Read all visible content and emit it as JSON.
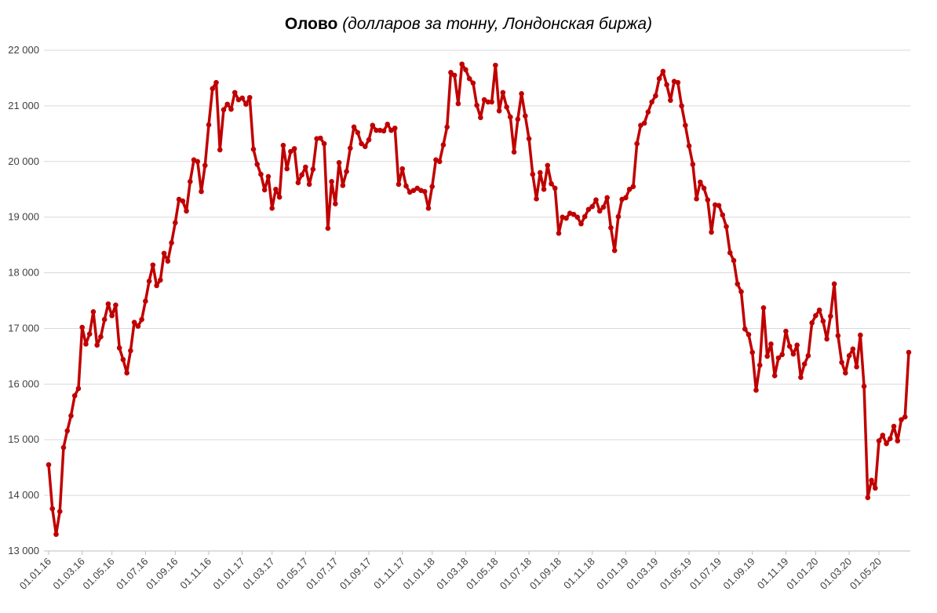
{
  "chart_data": {
    "type": "line",
    "title": "Олово",
    "subtitle": "(долларов за тонну, Лондонская биржа)",
    "categories": [
      "01.01.16",
      null,
      null,
      null,
      null,
      null,
      null,
      null,
      null,
      "01.03.16",
      null,
      null,
      null,
      null,
      null,
      null,
      null,
      "01.05.16",
      null,
      null,
      null,
      null,
      null,
      null,
      null,
      null,
      "01.07.16",
      null,
      null,
      null,
      null,
      null,
      null,
      null,
      "01.09.16",
      null,
      null,
      null,
      null,
      null,
      null,
      null,
      null,
      "01.11.16",
      null,
      null,
      null,
      null,
      null,
      null,
      null,
      null,
      "01.01.17",
      null,
      null,
      null,
      null,
      null,
      null,
      null,
      "01.03.17",
      null,
      null,
      null,
      null,
      null,
      null,
      null,
      null,
      "01.05.17",
      null,
      null,
      null,
      null,
      null,
      null,
      null,
      "01.07.17",
      null,
      null,
      null,
      null,
      null,
      null,
      null,
      null,
      "01.09.17",
      null,
      null,
      null,
      null,
      null,
      null,
      null,
      null,
      "01.11.17",
      null,
      null,
      null,
      null,
      null,
      null,
      null,
      "01.01.18",
      null,
      null,
      null,
      null,
      null,
      null,
      null,
      null,
      "01.03.18",
      null,
      null,
      null,
      null,
      null,
      null,
      null,
      "01.05.18",
      null,
      null,
      null,
      null,
      null,
      null,
      null,
      null,
      "01.07.18",
      null,
      null,
      null,
      null,
      null,
      null,
      null,
      "01.09.18",
      null,
      null,
      null,
      null,
      null,
      null,
      null,
      null,
      "01.11.18",
      null,
      null,
      null,
      null,
      null,
      null,
      null,
      null,
      "01.01.19",
      null,
      null,
      null,
      null,
      null,
      null,
      null,
      "01.03.19",
      null,
      null,
      null,
      null,
      null,
      null,
      null,
      null,
      "01.05.19",
      null,
      null,
      null,
      null,
      null,
      null,
      null,
      "01.07.19",
      null,
      null,
      null,
      null,
      null,
      null,
      null,
      null,
      "01.09.19",
      null,
      null,
      null,
      null,
      null,
      null,
      null,
      null,
      "01.11.19",
      null,
      null,
      null,
      null,
      null,
      null,
      null,
      "01.01.20",
      null,
      null,
      null,
      null,
      null,
      null,
      null,
      null,
      "01.03.20",
      null,
      null,
      null,
      null,
      null,
      null,
      null,
      "01.05.20",
      null,
      null,
      null,
      null,
      null,
      null,
      null,
      null
    ],
    "series": [
      {
        "name": "Олово",
        "color": "#c00000",
        "values": [
          14550,
          13760,
          13300,
          13710,
          14860,
          15160,
          15430,
          15790,
          15920,
          17020,
          16720,
          16900,
          17300,
          16700,
          16850,
          17160,
          17440,
          17230,
          17420,
          16650,
          16440,
          16200,
          16600,
          17110,
          17040,
          17160,
          17490,
          17850,
          18140,
          17770,
          17870,
          18350,
          18210,
          18540,
          18900,
          19320,
          19290,
          19110,
          19640,
          20030,
          20000,
          19460,
          19930,
          20660,
          21310,
          21420,
          20210,
          20930,
          21030,
          20940,
          21240,
          21110,
          21140,
          21030,
          21150,
          20220,
          19950,
          19770,
          19490,
          19730,
          19160,
          19500,
          19360,
          20290,
          19870,
          20180,
          20230,
          19620,
          19760,
          19900,
          19590,
          19860,
          20410,
          20420,
          20320,
          18800,
          19640,
          19240,
          19980,
          19570,
          19820,
          20240,
          20620,
          20520,
          20320,
          20270,
          20390,
          20650,
          20560,
          20560,
          20550,
          20670,
          20560,
          20600,
          19590,
          19870,
          19560,
          19450,
          19480,
          19520,
          19480,
          19460,
          19160,
          19550,
          20030,
          20000,
          20300,
          20620,
          21600,
          21550,
          21040,
          21750,
          21650,
          21490,
          21410,
          21010,
          20790,
          21110,
          21070,
          21070,
          21730,
          20910,
          21240,
          20980,
          20800,
          20170,
          20760,
          21220,
          20820,
          20410,
          19770,
          19330,
          19800,
          19500,
          19930,
          19600,
          19520,
          18710,
          19000,
          18980,
          19070,
          19050,
          19000,
          18880,
          19010,
          19140,
          19190,
          19310,
          19110,
          19180,
          19350,
          18810,
          18400,
          19010,
          19320,
          19350,
          19500,
          19550,
          20320,
          20650,
          20690,
          20890,
          21070,
          21180,
          21490,
          21620,
          21380,
          21100,
          21440,
          21420,
          21000,
          20650,
          20280,
          19950,
          19330,
          19630,
          19520,
          19310,
          18730,
          19220,
          19210,
          19040,
          18830,
          18360,
          18220,
          17800,
          17660,
          16990,
          16890,
          16570,
          15890,
          16340,
          17370,
          16500,
          16720,
          16150,
          16470,
          16530,
          16950,
          16680,
          16540,
          16700,
          16120,
          16360,
          16510,
          17100,
          17230,
          17330,
          17130,
          16810,
          17220,
          17800,
          16870,
          16390,
          16200,
          16510,
          16630,
          16310,
          16880,
          15960,
          13960,
          14270,
          14130,
          14980,
          15080,
          14930,
          15020,
          15240,
          14980,
          15360,
          15410,
          16570
        ]
      }
    ],
    "ylim": [
      13000,
      22000
    ],
    "yticks": [
      {
        "value": 13000,
        "label": "13 000"
      },
      {
        "value": 14000,
        "label": "14 000"
      },
      {
        "value": 15000,
        "label": "15 000"
      },
      {
        "value": 16000,
        "label": "16 000"
      },
      {
        "value": 17000,
        "label": "17 000"
      },
      {
        "value": 18000,
        "label": "18 000"
      },
      {
        "value": 19000,
        "label": "19 000"
      },
      {
        "value": 20000,
        "label": "20 000"
      },
      {
        "value": 21000,
        "label": "21 000"
      },
      {
        "value": 22000,
        "label": "22 000"
      }
    ],
    "grid": true
  }
}
